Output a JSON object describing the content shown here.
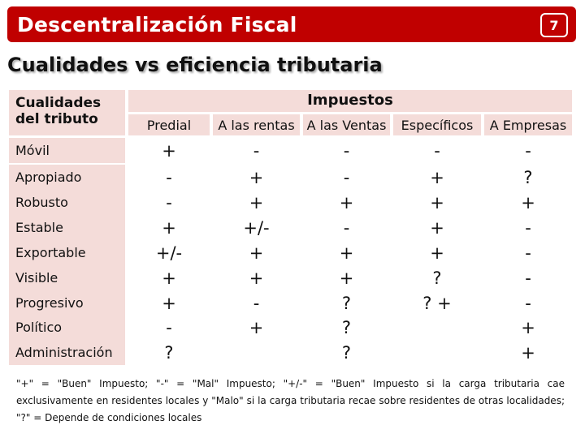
{
  "header": {
    "title": "Descentralización Fiscal",
    "page_number": "7",
    "bar_color": "#c00000"
  },
  "subtitle": "Cualidades vs eficiencia tributaria",
  "table": {
    "corner_label": "Cualidades del tributo",
    "group_header": "Impuestos",
    "columns": [
      "Predial",
      "A las rentas",
      "A las Ventas",
      "Específicos",
      "A Empresas"
    ],
    "rows": [
      {
        "label": "Móvil",
        "values": [
          "+",
          "-",
          "-",
          "-",
          "-"
        ]
      },
      {
        "label": "Apropiado",
        "values": [
          "-",
          "+",
          "-",
          "+",
          "?"
        ]
      },
      {
        "label": "Robusto",
        "values": [
          "-",
          "+",
          "+",
          "+",
          "+"
        ]
      },
      {
        "label": "Estable",
        "values": [
          "+",
          "+/-",
          "-",
          "+",
          "-"
        ]
      },
      {
        "label": "Exportable",
        "values": [
          "+/-",
          "+",
          "+",
          "+",
          "-"
        ]
      },
      {
        "label": "Visible",
        "values": [
          "+",
          "+",
          "+",
          "?",
          "-"
        ]
      },
      {
        "label": "Progresivo",
        "values": [
          "+",
          "-",
          "?",
          "? +",
          "-"
        ]
      },
      {
        "label": "Político",
        "values": [
          "-",
          "+",
          "?",
          "",
          "+"
        ]
      },
      {
        "label": "Administración",
        "values": [
          "?",
          "",
          "?",
          "",
          "+"
        ]
      }
    ],
    "header_fill": "#f4dcd9"
  },
  "footnote": "\"+\" = \"Buen\" Impuesto; \"-\" = \"Mal\" Impuesto; \"+/-\" = \"Buen\" Impuesto si la carga tributaria cae exclusivamente en residentes locales y \"Malo\" si la carga tributaria recae sobre residentes de otras localidades; \"?\" = Depende de condiciones locales"
}
